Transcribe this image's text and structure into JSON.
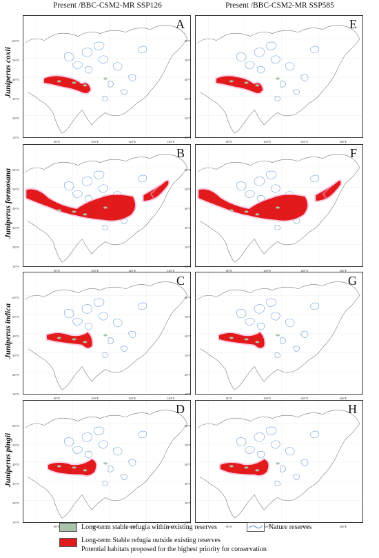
{
  "columns": [
    {
      "title": "Present /BBC-CSM2-MR SSP126"
    },
    {
      "title": "Present /BBC-CSM2-MR SSP585"
    }
  ],
  "rows": [
    {
      "species": "Juniperus coxii"
    },
    {
      "species": "Juniperus formosana"
    },
    {
      "species": "Juniperus indica"
    },
    {
      "species": "Juniperus pingii"
    }
  ],
  "panels": [
    {
      "letter": "A",
      "row": 0,
      "col": 0
    },
    {
      "letter": "E",
      "row": 0,
      "col": 1
    },
    {
      "letter": "B",
      "row": 1,
      "col": 0
    },
    {
      "letter": "F",
      "row": 1,
      "col": 1
    },
    {
      "letter": "C",
      "row": 2,
      "col": 0
    },
    {
      "letter": "G",
      "row": 2,
      "col": 1
    },
    {
      "letter": "D",
      "row": 3,
      "col": 0
    },
    {
      "letter": "H",
      "row": 3,
      "col": 1
    }
  ],
  "latitude_labels": [
    "60°N",
    "50°N",
    "40°N",
    "30°N",
    "20°N",
    "10°N"
  ],
  "longitude_labels": [
    "80°E",
    "100°E",
    "120°E",
    "140°E"
  ],
  "legend": {
    "within_reserves": "Long-term stable refugia within existing reserves",
    "nature_reserves": "Nature reserves",
    "outside_reserves_line1": "Long-term Stable refugia outside existing reserves",
    "outside_reserves_line2": "Potential habitats proposed for the highest priority for conservation"
  },
  "colors": {
    "within_reserves": "#a8c4aa",
    "outside_reserves": "#e31a1c",
    "nature_reserves": "#6f9fd8",
    "habitat_halo": "#f3a6d6"
  }
}
